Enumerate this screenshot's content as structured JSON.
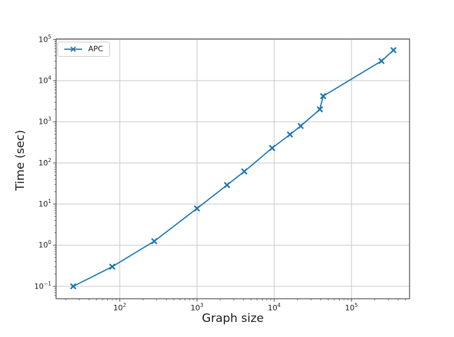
{
  "chart_data": {
    "type": "line",
    "title": "",
    "xlabel": "Graph size",
    "ylabel": "Time (sec)",
    "xscale": "log",
    "yscale": "log",
    "xlim": [
      15,
      565000
    ],
    "ylim": [
      0.05,
      103000
    ],
    "grid": true,
    "legend_position": "upper left",
    "x_major_ticks": [
      100,
      1000,
      10000,
      100000
    ],
    "y_major_ticks": [
      0.1,
      1,
      10,
      100,
      1000,
      10000,
      100000
    ],
    "series": [
      {
        "name": "APC",
        "color": "#1f77b4",
        "marker": "x",
        "line_style": "solid",
        "x": [
          25,
          80,
          280,
          1000,
          2450,
          4100,
          9400,
          16000,
          22000,
          39000,
          43000,
          245000,
          350000
        ],
        "y": [
          0.1,
          0.3,
          1.25,
          7.8,
          29,
          62,
          230,
          490,
          790,
          2000,
          4200,
          30000,
          55000
        ]
      }
    ]
  },
  "colors": {
    "series": "#1f77b4",
    "grid": "#c6c6c6",
    "frame": "#4a4a4a",
    "tick": "#4a4a4a",
    "text": "#1a1a1a",
    "background": "#ffffff"
  }
}
